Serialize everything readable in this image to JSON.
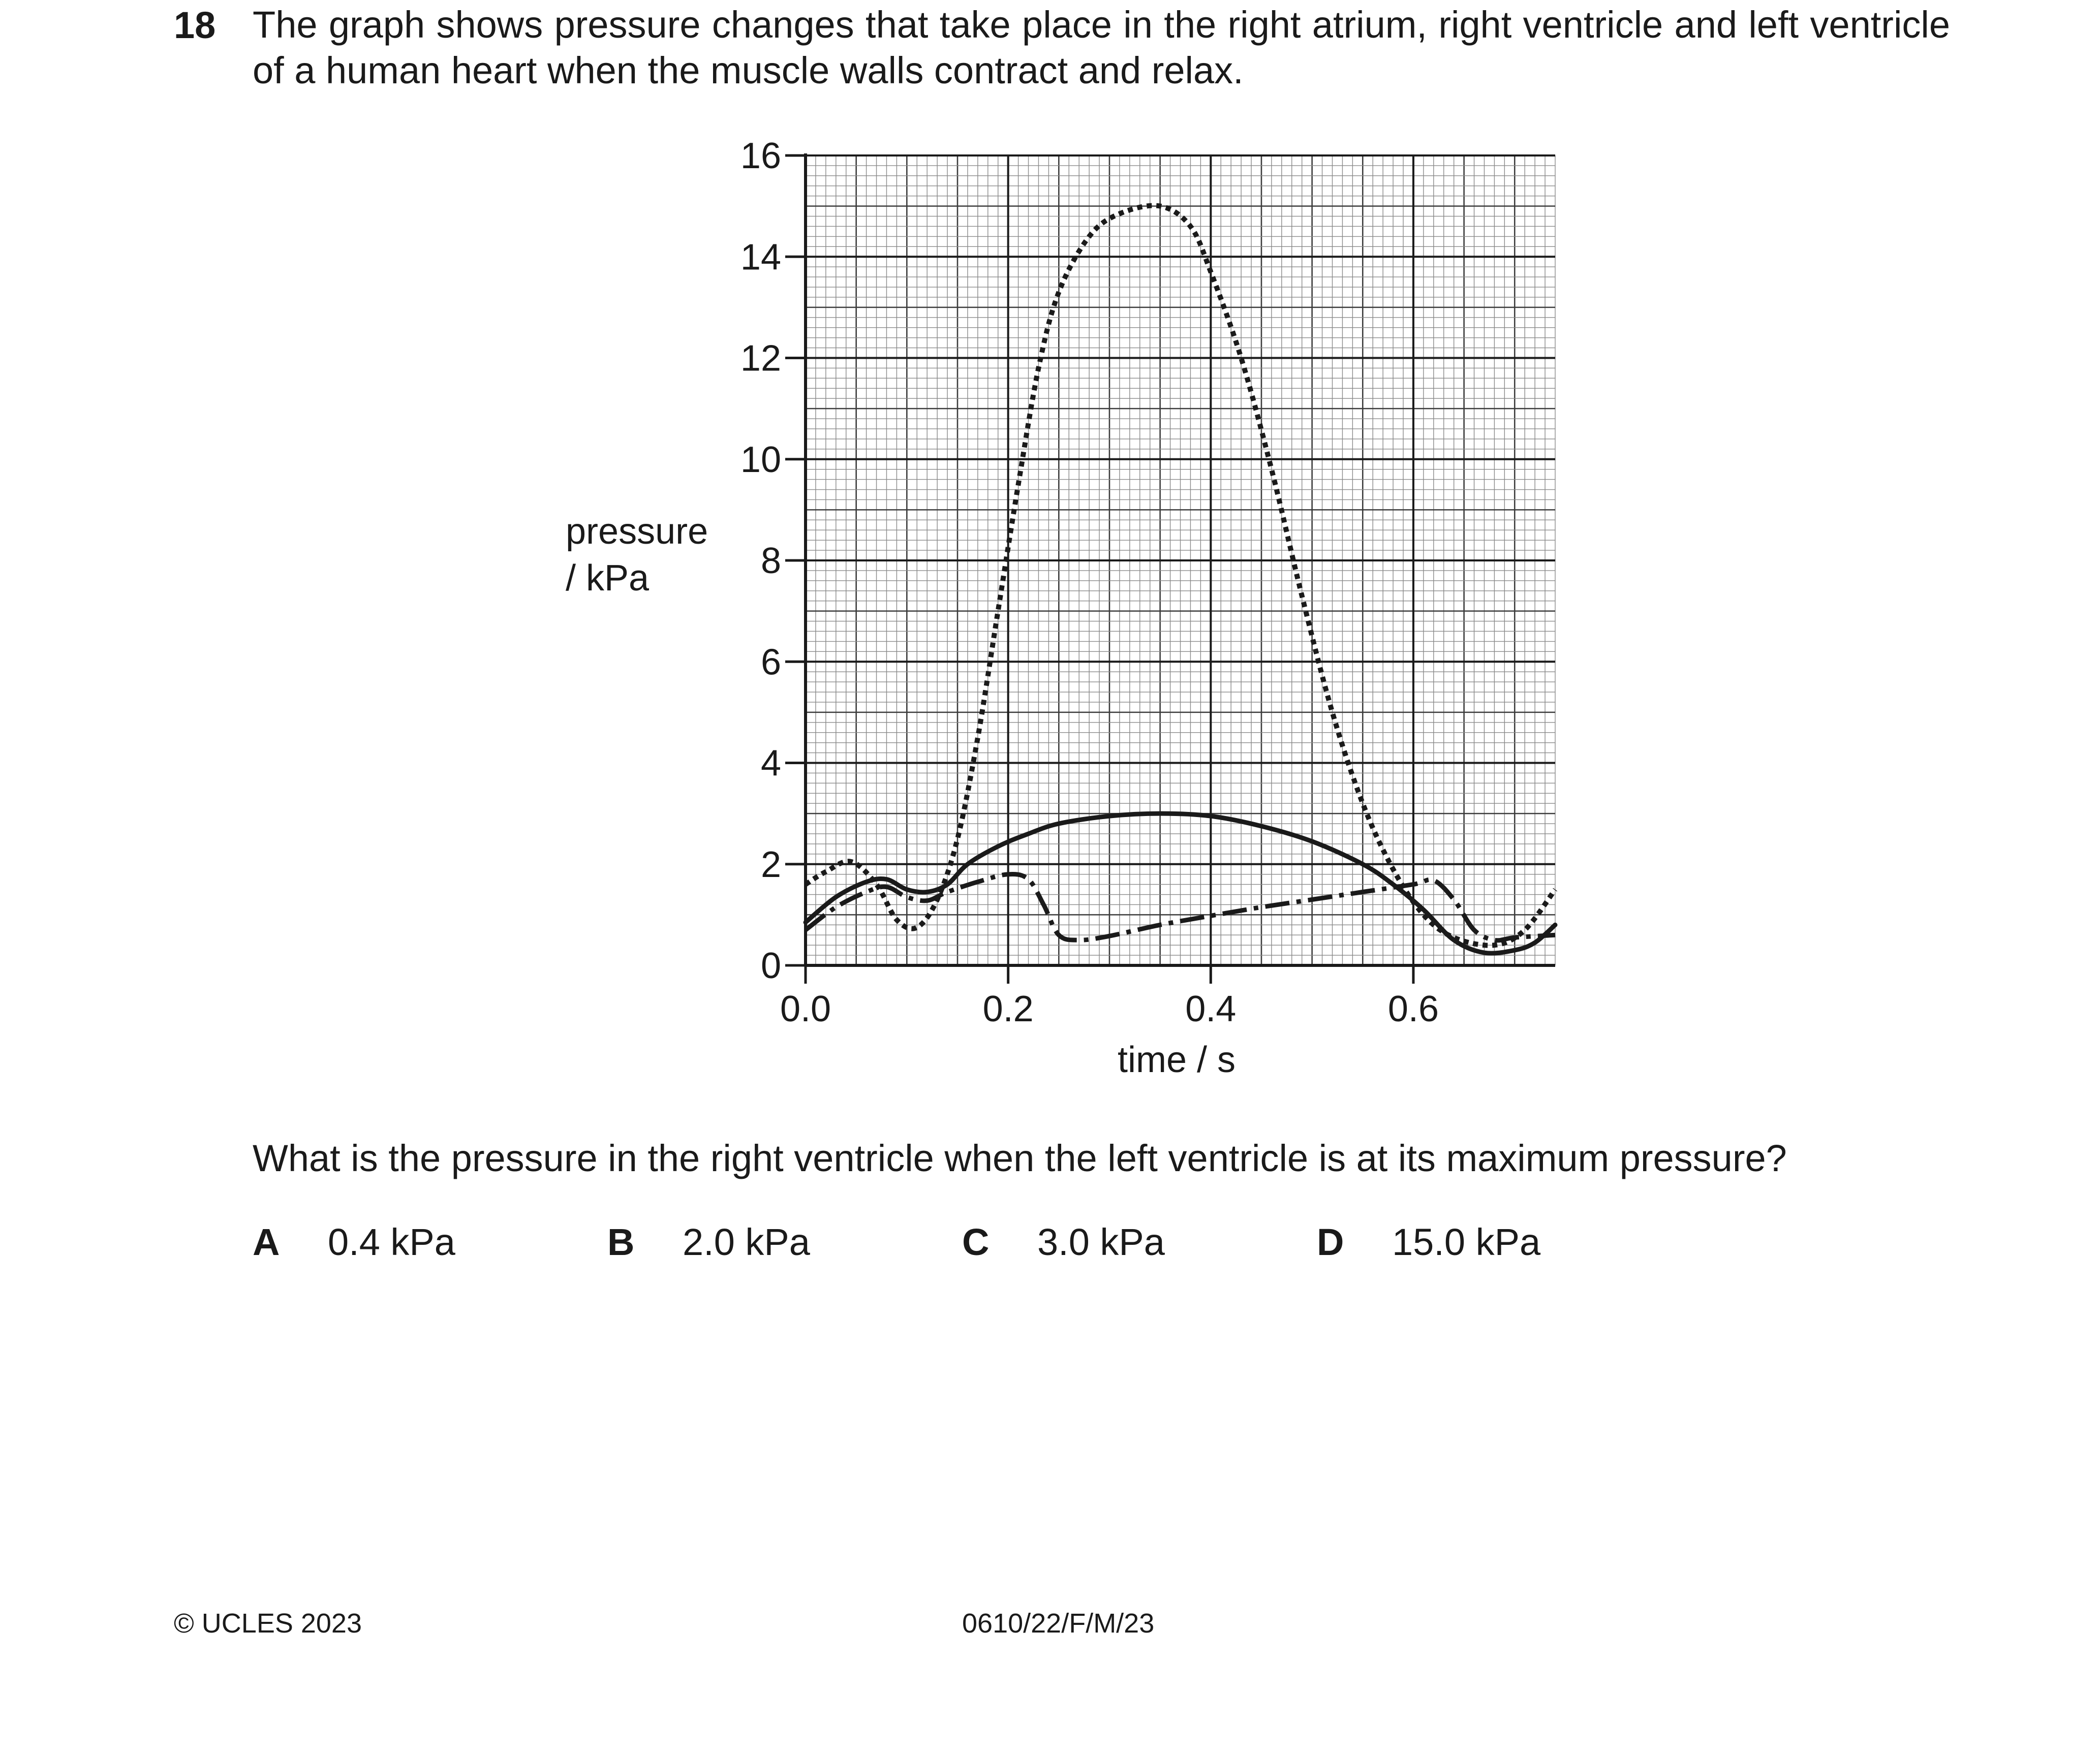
{
  "question": {
    "number": "18",
    "stem": "The graph shows pressure changes that take place in the right atrium, right ventricle and left ventricle of a human heart when the muscle walls contract and relax.",
    "prompt": "What is the pressure in the right ventricle when the left ventricle is at its maximum pressure?",
    "options": [
      {
        "letter": "A",
        "text": "0.4 kPa"
      },
      {
        "letter": "B",
        "text": "2.0 kPa"
      },
      {
        "letter": "C",
        "text": "3.0 kPa"
      },
      {
        "letter": "D",
        "text": "15.0 kPa"
      }
    ]
  },
  "chart_data": {
    "type": "line",
    "title": "",
    "xlabel": "time / s",
    "ylabel_lines": [
      "pressure",
      "/ kPa"
    ],
    "xlim": [
      0,
      0.74
    ],
    "ylim": [
      0,
      16
    ],
    "x_ticks": [
      "0.0",
      "0.2",
      "0.4",
      "0.6"
    ],
    "y_ticks": [
      "0",
      "2",
      "4",
      "6",
      "8",
      "10",
      "12",
      "14",
      "16"
    ],
    "grid": true,
    "series": [
      {
        "style": "dotted",
        "points": [
          [
            0,
            1.6
          ],
          [
            0.02,
            1.85
          ],
          [
            0.045,
            2.05
          ],
          [
            0.07,
            1.6
          ],
          [
            0.09,
            0.9
          ],
          [
            0.11,
            0.75
          ],
          [
            0.13,
            1.3
          ],
          [
            0.15,
            2.5
          ],
          [
            0.17,
            4.5
          ],
          [
            0.19,
            7.0
          ],
          [
            0.21,
            9.5
          ],
          [
            0.23,
            11.8
          ],
          [
            0.25,
            13.3
          ],
          [
            0.28,
            14.4
          ],
          [
            0.31,
            14.85
          ],
          [
            0.35,
            15.0
          ],
          [
            0.38,
            14.6
          ],
          [
            0.4,
            13.7
          ],
          [
            0.43,
            12.0
          ],
          [
            0.46,
            9.8
          ],
          [
            0.49,
            7.3
          ],
          [
            0.52,
            5.0
          ],
          [
            0.55,
            3.2
          ],
          [
            0.58,
            1.9
          ],
          [
            0.61,
            1.0
          ],
          [
            0.64,
            0.55
          ],
          [
            0.68,
            0.4
          ],
          [
            0.71,
            0.7
          ],
          [
            0.74,
            1.5
          ]
        ]
      },
      {
        "style": "solid",
        "points": [
          [
            0,
            0.85
          ],
          [
            0.03,
            1.35
          ],
          [
            0.06,
            1.65
          ],
          [
            0.08,
            1.7
          ],
          [
            0.1,
            1.5
          ],
          [
            0.12,
            1.45
          ],
          [
            0.14,
            1.6
          ],
          [
            0.16,
            2.0
          ],
          [
            0.19,
            2.35
          ],
          [
            0.22,
            2.6
          ],
          [
            0.25,
            2.8
          ],
          [
            0.3,
            2.95
          ],
          [
            0.35,
            3.0
          ],
          [
            0.4,
            2.95
          ],
          [
            0.45,
            2.75
          ],
          [
            0.5,
            2.45
          ],
          [
            0.55,
            2.0
          ],
          [
            0.58,
            1.6
          ],
          [
            0.61,
            1.1
          ],
          [
            0.64,
            0.5
          ],
          [
            0.67,
            0.25
          ],
          [
            0.7,
            0.3
          ],
          [
            0.72,
            0.45
          ],
          [
            0.74,
            0.8
          ]
        ]
      },
      {
        "style": "dash-dot",
        "points": [
          [
            0,
            0.7
          ],
          [
            0.03,
            1.15
          ],
          [
            0.06,
            1.45
          ],
          [
            0.08,
            1.55
          ],
          [
            0.1,
            1.35
          ],
          [
            0.12,
            1.28
          ],
          [
            0.14,
            1.45
          ],
          [
            0.17,
            1.65
          ],
          [
            0.2,
            1.8
          ],
          [
            0.22,
            1.7
          ],
          [
            0.235,
            1.2
          ],
          [
            0.25,
            0.6
          ],
          [
            0.27,
            0.5
          ],
          [
            0.3,
            0.58
          ],
          [
            0.35,
            0.8
          ],
          [
            0.4,
            0.98
          ],
          [
            0.45,
            1.15
          ],
          [
            0.5,
            1.3
          ],
          [
            0.55,
            1.45
          ],
          [
            0.6,
            1.6
          ],
          [
            0.62,
            1.68
          ],
          [
            0.64,
            1.3
          ],
          [
            0.66,
            0.7
          ],
          [
            0.68,
            0.5
          ],
          [
            0.7,
            0.55
          ],
          [
            0.74,
            0.6
          ]
        ]
      }
    ]
  },
  "footer": {
    "copyright": "© UCLES 2023",
    "code": "0610/22/F/M/23"
  }
}
